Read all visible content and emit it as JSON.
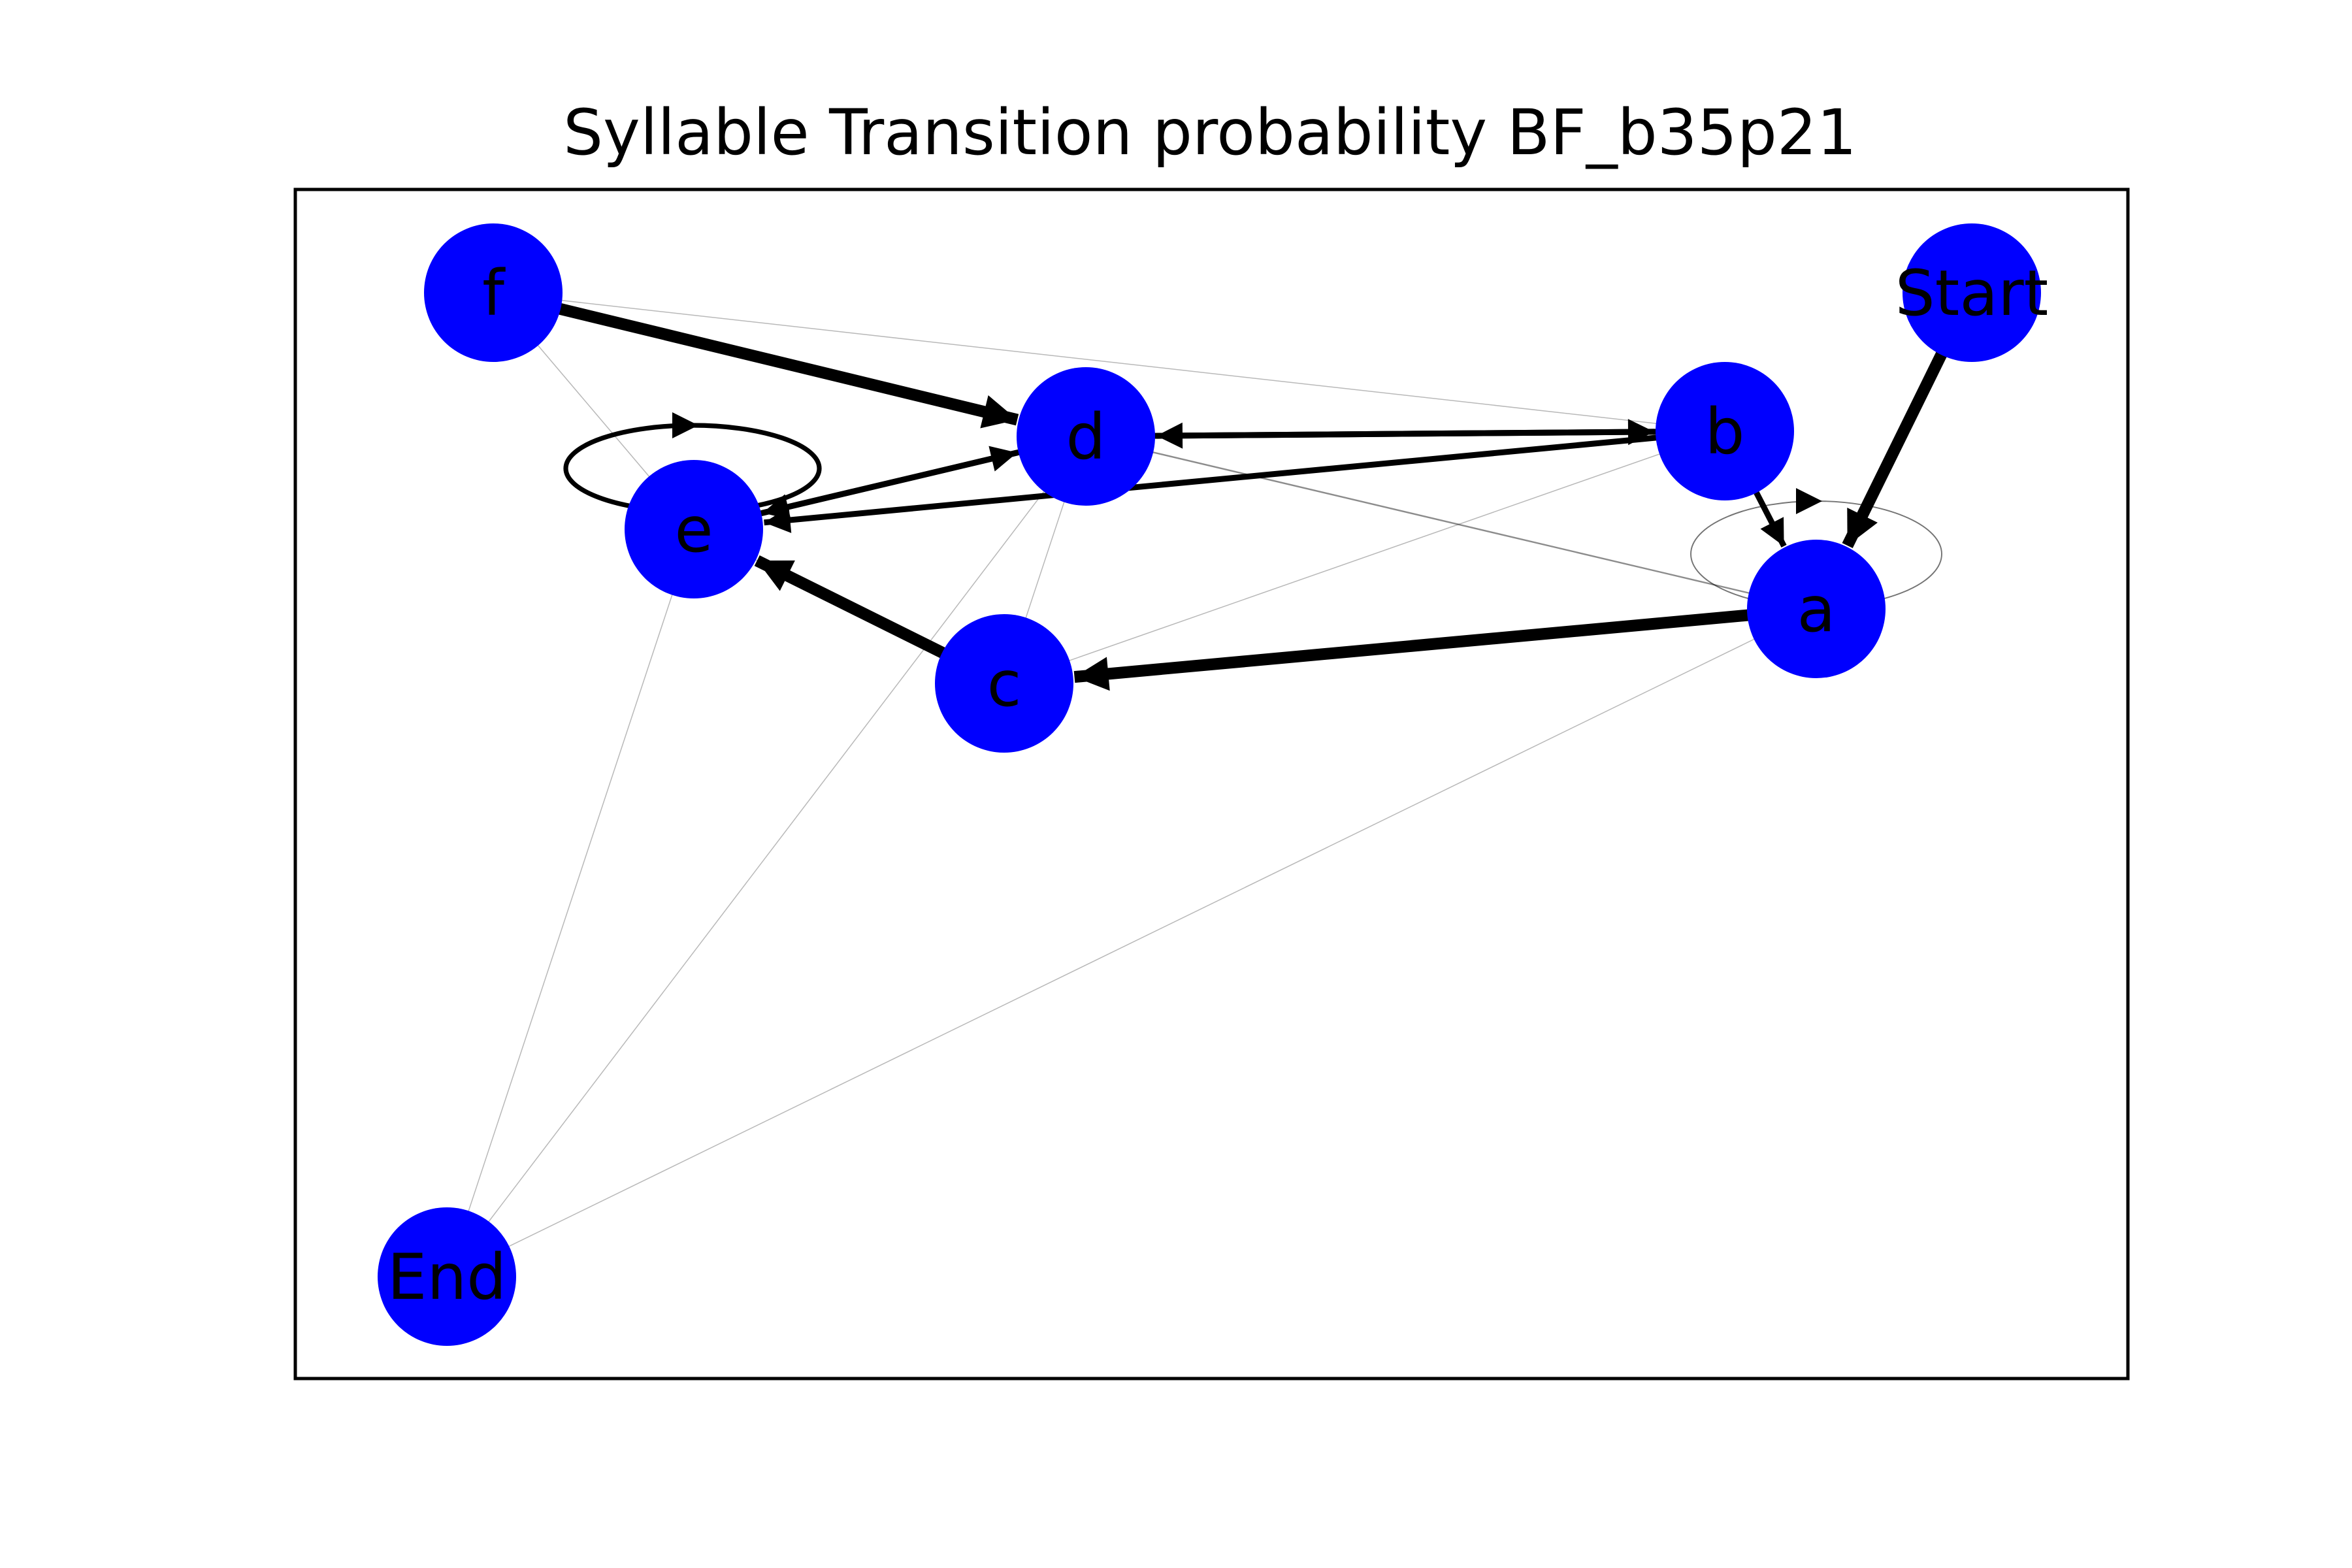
{
  "diagram": {
    "title": "Syllable Transition probability BF_b35p21",
    "node_color": "#0000ff",
    "edge_color": "#000000",
    "nodes": [
      {
        "id": "f",
        "label": "f"
      },
      {
        "id": "start",
        "label": "Start"
      },
      {
        "id": "d",
        "label": "d"
      },
      {
        "id": "b",
        "label": "b"
      },
      {
        "id": "e",
        "label": "e"
      },
      {
        "id": "a",
        "label": "a"
      },
      {
        "id": "c",
        "label": "c"
      },
      {
        "id": "end",
        "label": "End"
      }
    ],
    "edges": [
      {
        "from": "f",
        "to": "d",
        "weight": "heavy"
      },
      {
        "from": "start",
        "to": "a",
        "weight": "heavy"
      },
      {
        "from": "a",
        "to": "c",
        "weight": "heavy"
      },
      {
        "from": "c",
        "to": "e",
        "weight": "heavy"
      },
      {
        "from": "b",
        "to": "d",
        "weight": "medium"
      },
      {
        "from": "d",
        "to": "b",
        "weight": "medium"
      },
      {
        "from": "e",
        "to": "d",
        "weight": "medium"
      },
      {
        "from": "d",
        "to": "e",
        "weight": "medium"
      },
      {
        "from": "b",
        "to": "e",
        "weight": "medium"
      },
      {
        "from": "b",
        "to": "a",
        "weight": "medium"
      },
      {
        "from": "e",
        "to": "e",
        "weight": "medium"
      },
      {
        "from": "a",
        "to": "a",
        "weight": "light"
      },
      {
        "from": "d",
        "to": "a",
        "weight": "light"
      },
      {
        "from": "f",
        "to": "b",
        "weight": "faint"
      },
      {
        "from": "f",
        "to": "e",
        "weight": "faint"
      },
      {
        "from": "e",
        "to": "c",
        "weight": "faint"
      },
      {
        "from": "b",
        "to": "c",
        "weight": "faint"
      },
      {
        "from": "d",
        "to": "c",
        "weight": "faint"
      },
      {
        "from": "e",
        "to": "end",
        "weight": "faint"
      },
      {
        "from": "d",
        "to": "end",
        "weight": "faint"
      },
      {
        "from": "a",
        "to": "end",
        "weight": "faint"
      }
    ]
  }
}
